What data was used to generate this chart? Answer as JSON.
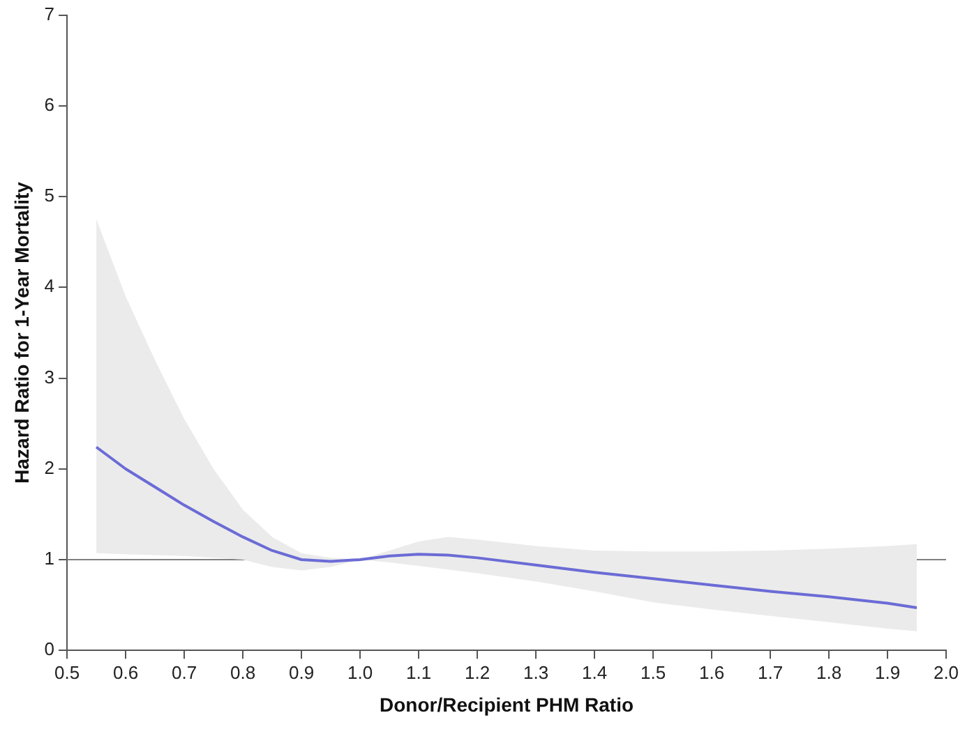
{
  "chart_data": {
    "type": "line",
    "xlabel": "Donor/Recipient PHM Ratio",
    "ylabel": "Hazard Ratio for 1-Year Mortality",
    "x": [
      0.55,
      0.6,
      0.65,
      0.7,
      0.75,
      0.8,
      0.85,
      0.9,
      0.95,
      1.0,
      1.05,
      1.1,
      1.15,
      1.2,
      1.3,
      1.4,
      1.5,
      1.6,
      1.7,
      1.8,
      1.9,
      1.95
    ],
    "series": [
      {
        "color": "#6b6bd6",
        "values": [
          2.24,
          2.0,
          1.8,
          1.6,
          1.42,
          1.25,
          1.1,
          1.0,
          0.98,
          1.0,
          1.04,
          1.06,
          1.05,
          1.02,
          0.94,
          0.86,
          0.79,
          0.72,
          0.65,
          0.59,
          0.52,
          0.47
        ],
        "upper": [
          4.75,
          3.9,
          3.2,
          2.55,
          2.0,
          1.55,
          1.25,
          1.07,
          1.02,
          1.0,
          1.1,
          1.2,
          1.25,
          1.22,
          1.15,
          1.1,
          1.09,
          1.09,
          1.1,
          1.12,
          1.15,
          1.17
        ],
        "lower": [
          1.07,
          1.06,
          1.05,
          1.04,
          1.02,
          1.0,
          0.92,
          0.88,
          0.92,
          1.0,
          0.97,
          0.93,
          0.89,
          0.85,
          0.76,
          0.65,
          0.53,
          0.45,
          0.38,
          0.31,
          0.24,
          0.21
        ]
      }
    ],
    "xlim": [
      0.5,
      2.0
    ],
    "xticks": [
      0.5,
      0.6,
      0.7,
      0.8,
      0.9,
      {
        "value": 1,
        "label": "1.0"
      },
      1.1,
      1.2,
      1.3,
      1.4,
      1.5,
      1.6,
      1.7,
      1.8,
      1.9,
      {
        "value": 2,
        "label": "2.0"
      }
    ],
    "ylim": [
      0,
      7
    ],
    "yticks": [
      0,
      1,
      2,
      3,
      4,
      5,
      6,
      7
    ],
    "ref_lines": [
      {
        "axis": "y",
        "value": 1,
        "color": "#808080"
      }
    ],
    "grid": false,
    "legend": false,
    "marker": "none",
    "line_style": "solid"
  }
}
